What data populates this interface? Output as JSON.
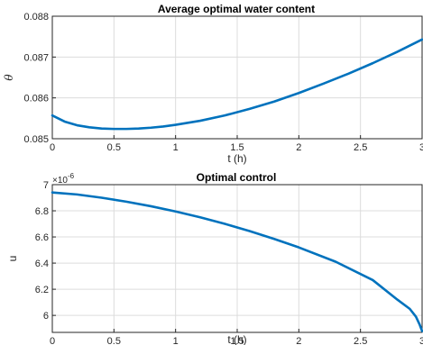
{
  "chart_data": [
    {
      "type": "line",
      "title": "Average optimal water content",
      "xlabel": "t (h)",
      "ylabel": "θ",
      "xlim": [
        0,
        3
      ],
      "ylim": [
        0.085,
        0.088
      ],
      "xticks": [
        "0",
        "0.5",
        "1",
        "1.5",
        "2",
        "2.5",
        "3"
      ],
      "yticks": [
        "0.085",
        "0.086",
        "0.087",
        "0.088"
      ],
      "grid": true,
      "color": "#0072BD",
      "series": [
        {
          "x": [
            0,
            0.1,
            0.2,
            0.3,
            0.4,
            0.5,
            0.6,
            0.7,
            0.8,
            0.9,
            1.0,
            1.2,
            1.4,
            1.6,
            1.8,
            2.0,
            2.2,
            2.4,
            2.6,
            2.8,
            3.0
          ],
          "values": [
            0.08557,
            0.08542,
            0.08533,
            0.08528,
            0.08525,
            0.08524,
            0.08524,
            0.08525,
            0.08527,
            0.0853,
            0.08534,
            0.08544,
            0.08557,
            0.08573,
            0.08591,
            0.08612,
            0.08635,
            0.08659,
            0.08685,
            0.08713,
            0.08743
          ]
        }
      ]
    },
    {
      "type": "line",
      "title": "Optimal control",
      "xlabel": "t (h)",
      "ylabel": "u",
      "exponent_label": "×10",
      "exponent_power": "-6",
      "xlim": [
        0,
        3
      ],
      "ylim": [
        5.87,
        7.0
      ],
      "xticks": [
        "0",
        "0.5",
        "1",
        "1.5",
        "2",
        "2.5",
        "3"
      ],
      "yticks": [
        "6",
        "6.2",
        "6.4",
        "6.6",
        "6.8",
        "7"
      ],
      "grid": true,
      "color": "#0072BD",
      "series": [
        {
          "x": [
            0,
            0.2,
            0.4,
            0.6,
            0.8,
            1.0,
            1.2,
            1.4,
            1.6,
            1.8,
            2.0,
            2.3,
            2.6,
            2.8,
            2.9,
            2.95,
            2.98,
            3.0
          ],
          "values": [
            6.94,
            6.925,
            6.9,
            6.87,
            6.835,
            6.795,
            6.75,
            6.7,
            6.645,
            6.585,
            6.52,
            6.41,
            6.27,
            6.12,
            6.05,
            5.99,
            5.93,
            5.88
          ]
        }
      ]
    }
  ]
}
